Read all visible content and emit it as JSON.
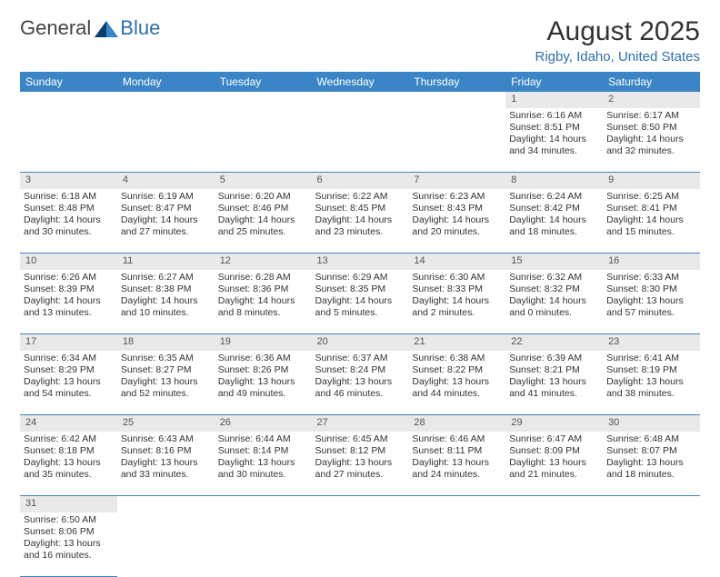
{
  "brand": {
    "part1": "General",
    "part2": "Blue"
  },
  "title": "August 2025",
  "location": "Rigby, Idaho, United States",
  "colors": {
    "accent": "#3b85c6",
    "link": "#2f6fa8",
    "daynum_bg": "#e9e9e9"
  },
  "day_headers": [
    "Sunday",
    "Monday",
    "Tuesday",
    "Wednesday",
    "Thursday",
    "Friday",
    "Saturday"
  ],
  "weeks": [
    [
      null,
      null,
      null,
      null,
      null,
      {
        "num": "1",
        "sunrise": "Sunrise: 6:16 AM",
        "sunset": "Sunset: 8:51 PM",
        "day1": "Daylight: 14 hours",
        "day2": "and 34 minutes."
      },
      {
        "num": "2",
        "sunrise": "Sunrise: 6:17 AM",
        "sunset": "Sunset: 8:50 PM",
        "day1": "Daylight: 14 hours",
        "day2": "and 32 minutes."
      }
    ],
    [
      {
        "num": "3",
        "sunrise": "Sunrise: 6:18 AM",
        "sunset": "Sunset: 8:48 PM",
        "day1": "Daylight: 14 hours",
        "day2": "and 30 minutes."
      },
      {
        "num": "4",
        "sunrise": "Sunrise: 6:19 AM",
        "sunset": "Sunset: 8:47 PM",
        "day1": "Daylight: 14 hours",
        "day2": "and 27 minutes."
      },
      {
        "num": "5",
        "sunrise": "Sunrise: 6:20 AM",
        "sunset": "Sunset: 8:46 PM",
        "day1": "Daylight: 14 hours",
        "day2": "and 25 minutes."
      },
      {
        "num": "6",
        "sunrise": "Sunrise: 6:22 AM",
        "sunset": "Sunset: 8:45 PM",
        "day1": "Daylight: 14 hours",
        "day2": "and 23 minutes."
      },
      {
        "num": "7",
        "sunrise": "Sunrise: 6:23 AM",
        "sunset": "Sunset: 8:43 PM",
        "day1": "Daylight: 14 hours",
        "day2": "and 20 minutes."
      },
      {
        "num": "8",
        "sunrise": "Sunrise: 6:24 AM",
        "sunset": "Sunset: 8:42 PM",
        "day1": "Daylight: 14 hours",
        "day2": "and 18 minutes."
      },
      {
        "num": "9",
        "sunrise": "Sunrise: 6:25 AM",
        "sunset": "Sunset: 8:41 PM",
        "day1": "Daylight: 14 hours",
        "day2": "and 15 minutes."
      }
    ],
    [
      {
        "num": "10",
        "sunrise": "Sunrise: 6:26 AM",
        "sunset": "Sunset: 8:39 PM",
        "day1": "Daylight: 14 hours",
        "day2": "and 13 minutes."
      },
      {
        "num": "11",
        "sunrise": "Sunrise: 6:27 AM",
        "sunset": "Sunset: 8:38 PM",
        "day1": "Daylight: 14 hours",
        "day2": "and 10 minutes."
      },
      {
        "num": "12",
        "sunrise": "Sunrise: 6:28 AM",
        "sunset": "Sunset: 8:36 PM",
        "day1": "Daylight: 14 hours",
        "day2": "and 8 minutes."
      },
      {
        "num": "13",
        "sunrise": "Sunrise: 6:29 AM",
        "sunset": "Sunset: 8:35 PM",
        "day1": "Daylight: 14 hours",
        "day2": "and 5 minutes."
      },
      {
        "num": "14",
        "sunrise": "Sunrise: 6:30 AM",
        "sunset": "Sunset: 8:33 PM",
        "day1": "Daylight: 14 hours",
        "day2": "and 2 minutes."
      },
      {
        "num": "15",
        "sunrise": "Sunrise: 6:32 AM",
        "sunset": "Sunset: 8:32 PM",
        "day1": "Daylight: 14 hours",
        "day2": "and 0 minutes."
      },
      {
        "num": "16",
        "sunrise": "Sunrise: 6:33 AM",
        "sunset": "Sunset: 8:30 PM",
        "day1": "Daylight: 13 hours",
        "day2": "and 57 minutes."
      }
    ],
    [
      {
        "num": "17",
        "sunrise": "Sunrise: 6:34 AM",
        "sunset": "Sunset: 8:29 PM",
        "day1": "Daylight: 13 hours",
        "day2": "and 54 minutes."
      },
      {
        "num": "18",
        "sunrise": "Sunrise: 6:35 AM",
        "sunset": "Sunset: 8:27 PM",
        "day1": "Daylight: 13 hours",
        "day2": "and 52 minutes."
      },
      {
        "num": "19",
        "sunrise": "Sunrise: 6:36 AM",
        "sunset": "Sunset: 8:26 PM",
        "day1": "Daylight: 13 hours",
        "day2": "and 49 minutes."
      },
      {
        "num": "20",
        "sunrise": "Sunrise: 6:37 AM",
        "sunset": "Sunset: 8:24 PM",
        "day1": "Daylight: 13 hours",
        "day2": "and 46 minutes."
      },
      {
        "num": "21",
        "sunrise": "Sunrise: 6:38 AM",
        "sunset": "Sunset: 8:22 PM",
        "day1": "Daylight: 13 hours",
        "day2": "and 44 minutes."
      },
      {
        "num": "22",
        "sunrise": "Sunrise: 6:39 AM",
        "sunset": "Sunset: 8:21 PM",
        "day1": "Daylight: 13 hours",
        "day2": "and 41 minutes."
      },
      {
        "num": "23",
        "sunrise": "Sunrise: 6:41 AM",
        "sunset": "Sunset: 8:19 PM",
        "day1": "Daylight: 13 hours",
        "day2": "and 38 minutes."
      }
    ],
    [
      {
        "num": "24",
        "sunrise": "Sunrise: 6:42 AM",
        "sunset": "Sunset: 8:18 PM",
        "day1": "Daylight: 13 hours",
        "day2": "and 35 minutes."
      },
      {
        "num": "25",
        "sunrise": "Sunrise: 6:43 AM",
        "sunset": "Sunset: 8:16 PM",
        "day1": "Daylight: 13 hours",
        "day2": "and 33 minutes."
      },
      {
        "num": "26",
        "sunrise": "Sunrise: 6:44 AM",
        "sunset": "Sunset: 8:14 PM",
        "day1": "Daylight: 13 hours",
        "day2": "and 30 minutes."
      },
      {
        "num": "27",
        "sunrise": "Sunrise: 6:45 AM",
        "sunset": "Sunset: 8:12 PM",
        "day1": "Daylight: 13 hours",
        "day2": "and 27 minutes."
      },
      {
        "num": "28",
        "sunrise": "Sunrise: 6:46 AM",
        "sunset": "Sunset: 8:11 PM",
        "day1": "Daylight: 13 hours",
        "day2": "and 24 minutes."
      },
      {
        "num": "29",
        "sunrise": "Sunrise: 6:47 AM",
        "sunset": "Sunset: 8:09 PM",
        "day1": "Daylight: 13 hours",
        "day2": "and 21 minutes."
      },
      {
        "num": "30",
        "sunrise": "Sunrise: 6:48 AM",
        "sunset": "Sunset: 8:07 PM",
        "day1": "Daylight: 13 hours",
        "day2": "and 18 minutes."
      }
    ],
    [
      {
        "num": "31",
        "sunrise": "Sunrise: 6:50 AM",
        "sunset": "Sunset: 8:06 PM",
        "day1": "Daylight: 13 hours",
        "day2": "and 16 minutes."
      },
      null,
      null,
      null,
      null,
      null,
      null
    ]
  ]
}
